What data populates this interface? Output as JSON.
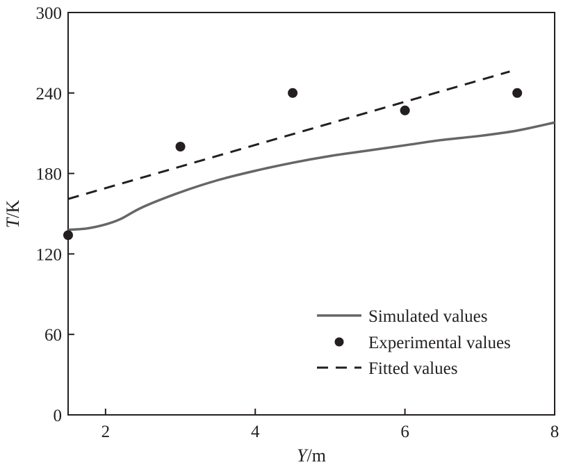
{
  "chart_data": {
    "type": "line",
    "xlabel": {
      "var": "Y",
      "unit": "/m"
    },
    "ylabel": {
      "var": "T",
      "unit": "/K"
    },
    "xlim": [
      1.5,
      8
    ],
    "ylim": [
      0,
      300
    ],
    "xticks": [
      2,
      4,
      6,
      8
    ],
    "yticks": [
      0,
      60,
      120,
      180,
      240,
      300
    ],
    "grid": false,
    "legend_position": "bottom-right",
    "series": [
      {
        "name": "Simulated values",
        "style": "solid-line",
        "color": "#666666",
        "x": [
          1.5,
          1.75,
          2.0,
          2.2,
          2.5,
          3.0,
          3.5,
          4.0,
          4.5,
          5.0,
          5.5,
          6.0,
          6.5,
          7.0,
          7.5,
          8.0
        ],
        "y": [
          138,
          139,
          142,
          146,
          155,
          166,
          175,
          182,
          188,
          193,
          197,
          201,
          205,
          208,
          212,
          218
        ]
      },
      {
        "name": "Experimental values",
        "style": "points",
        "color": "#231f20",
        "x": [
          1.5,
          3.0,
          4.5,
          6.0,
          7.5
        ],
        "y": [
          134,
          200,
          240,
          227,
          240
        ]
      },
      {
        "name": "Fitted values",
        "style": "dashed-line",
        "color": "#231f20",
        "x": [
          1.5,
          7.4
        ],
        "y": [
          161,
          256
        ]
      }
    ]
  }
}
